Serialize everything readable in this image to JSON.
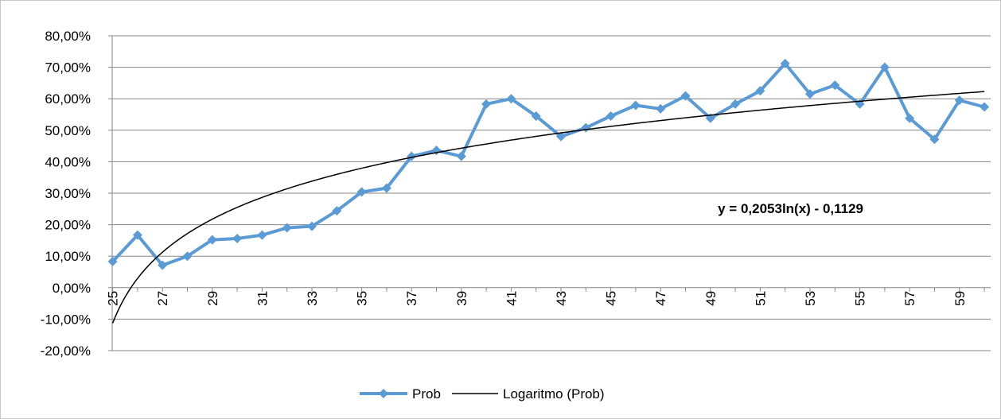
{
  "chart_data": {
    "type": "line",
    "x": [
      25,
      26,
      27,
      28,
      29,
      30,
      31,
      32,
      33,
      34,
      35,
      36,
      37,
      38,
      39,
      40,
      41,
      42,
      43,
      44,
      45,
      46,
      47,
      48,
      49,
      50,
      51,
      52,
      53,
      54,
      55,
      56,
      57,
      58,
      59,
      60
    ],
    "x_tick_labels": [
      "25",
      "27",
      "29",
      "31",
      "33",
      "35",
      "37",
      "39",
      "41",
      "43",
      "45",
      "47",
      "49",
      "51",
      "53",
      "55",
      "57",
      "59"
    ],
    "y_tick_labels": [
      "80,00%",
      "70,00%",
      "60,00%",
      "50,00%",
      "40,00%",
      "30,00%",
      "20,00%",
      "10,00%",
      "0,00%",
      "-10,00%",
      "-20,00%"
    ],
    "ylim": [
      -0.2,
      0.8
    ],
    "series": [
      {
        "name": "Prob",
        "color": "#5b9bd5",
        "marker": "diamond",
        "values": [
          0.083,
          0.167,
          0.071,
          0.1,
          0.152,
          0.156,
          0.167,
          0.19,
          0.195,
          0.244,
          0.304,
          0.316,
          0.417,
          0.436,
          0.417,
          0.583,
          0.6,
          0.545,
          0.48,
          0.508,
          0.545,
          0.579,
          0.568,
          0.609,
          0.538,
          0.583,
          0.625,
          0.712,
          0.615,
          0.643,
          0.583,
          0.7,
          0.538,
          0.471,
          0.595,
          0.574
        ]
      }
    ],
    "trendline": {
      "name": "Logaritmo (Prob)",
      "color": "#000000",
      "type": "logarithmic",
      "a": 0.2053,
      "b": -0.1129,
      "equation": "y = 0,2053ln(x) - 0,1129"
    },
    "legend": {
      "position": "bottom",
      "entries": [
        "Prob",
        "Logaritmo (Prob)"
      ]
    },
    "grid": "horizontal",
    "title": "",
    "xlabel": "",
    "ylabel": ""
  }
}
